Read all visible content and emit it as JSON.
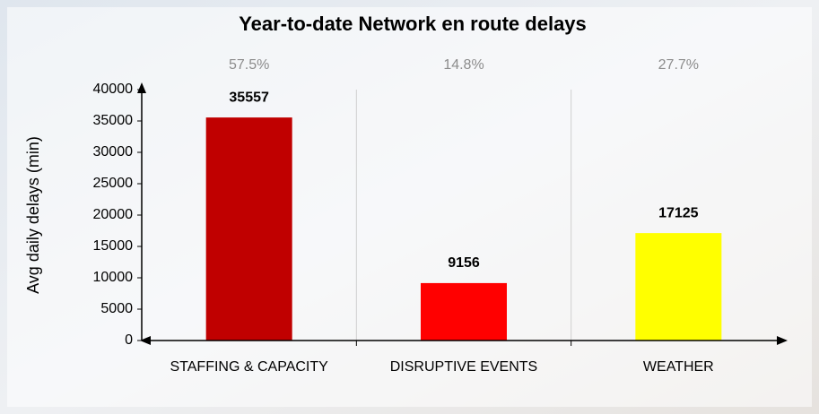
{
  "chart_data": {
    "type": "bar",
    "title": "Year-to-date Network en route delays",
    "y_label": "Avg daily delays (min)",
    "categories": [
      "STAFFING & CAPACITY",
      "DISRUPTIVE EVENTS",
      "WEATHER"
    ],
    "values": [
      35557,
      9156,
      17125
    ],
    "colors": [
      "#c00000",
      "#ff0000",
      "#ffff00"
    ],
    "annotations": [
      "57.5%",
      "14.8%",
      "27.7%"
    ],
    "ylim": [
      0,
      40000
    ],
    "yticks": [
      0,
      5000,
      10000,
      15000,
      20000,
      25000,
      30000,
      35000,
      40000
    ]
  }
}
